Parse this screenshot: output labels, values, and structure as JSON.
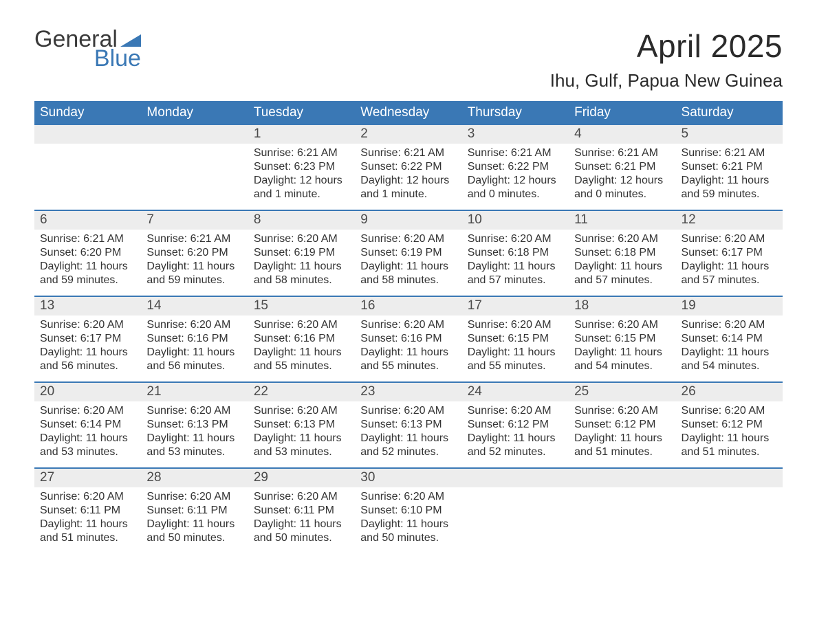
{
  "logo": {
    "word1": "General",
    "word2": "Blue",
    "tri_color": "#3a78b5",
    "text_color": "#3a3a3a"
  },
  "title": "April 2025",
  "location": "Ihu, Gulf, Papua New Guinea",
  "colors": {
    "header_bg": "#3a78b5",
    "header_text": "#ffffff",
    "daynum_bg": "#ededed",
    "daynum_text": "#4a4a4a",
    "body_text": "#333333",
    "separator": "#3a78b5",
    "page_bg": "#ffffff"
  },
  "fonts": {
    "title_size_pt": 34,
    "location_size_pt": 20,
    "dow_size_pt": 14,
    "daynum_size_pt": 14,
    "body_size_pt": 12
  },
  "days_of_week": [
    "Sunday",
    "Monday",
    "Tuesday",
    "Wednesday",
    "Thursday",
    "Friday",
    "Saturday"
  ],
  "weeks": [
    {
      "nums": [
        "",
        "",
        "1",
        "2",
        "3",
        "4",
        "5"
      ],
      "cells": [
        "",
        "",
        "Sunrise: 6:21 AM\nSunset: 6:23 PM\nDaylight: 12 hours and 1 minute.",
        "Sunrise: 6:21 AM\nSunset: 6:22 PM\nDaylight: 12 hours and 1 minute.",
        "Sunrise: 6:21 AM\nSunset: 6:22 PM\nDaylight: 12 hours and 0 minutes.",
        "Sunrise: 6:21 AM\nSunset: 6:21 PM\nDaylight: 12 hours and 0 minutes.",
        "Sunrise: 6:21 AM\nSunset: 6:21 PM\nDaylight: 11 hours and 59 minutes."
      ]
    },
    {
      "nums": [
        "6",
        "7",
        "8",
        "9",
        "10",
        "11",
        "12"
      ],
      "cells": [
        "Sunrise: 6:21 AM\nSunset: 6:20 PM\nDaylight: 11 hours and 59 minutes.",
        "Sunrise: 6:21 AM\nSunset: 6:20 PM\nDaylight: 11 hours and 59 minutes.",
        "Sunrise: 6:20 AM\nSunset: 6:19 PM\nDaylight: 11 hours and 58 minutes.",
        "Sunrise: 6:20 AM\nSunset: 6:19 PM\nDaylight: 11 hours and 58 minutes.",
        "Sunrise: 6:20 AM\nSunset: 6:18 PM\nDaylight: 11 hours and 57 minutes.",
        "Sunrise: 6:20 AM\nSunset: 6:18 PM\nDaylight: 11 hours and 57 minutes.",
        "Sunrise: 6:20 AM\nSunset: 6:17 PM\nDaylight: 11 hours and 57 minutes."
      ]
    },
    {
      "nums": [
        "13",
        "14",
        "15",
        "16",
        "17",
        "18",
        "19"
      ],
      "cells": [
        "Sunrise: 6:20 AM\nSunset: 6:17 PM\nDaylight: 11 hours and 56 minutes.",
        "Sunrise: 6:20 AM\nSunset: 6:16 PM\nDaylight: 11 hours and 56 minutes.",
        "Sunrise: 6:20 AM\nSunset: 6:16 PM\nDaylight: 11 hours and 55 minutes.",
        "Sunrise: 6:20 AM\nSunset: 6:16 PM\nDaylight: 11 hours and 55 minutes.",
        "Sunrise: 6:20 AM\nSunset: 6:15 PM\nDaylight: 11 hours and 55 minutes.",
        "Sunrise: 6:20 AM\nSunset: 6:15 PM\nDaylight: 11 hours and 54 minutes.",
        "Sunrise: 6:20 AM\nSunset: 6:14 PM\nDaylight: 11 hours and 54 minutes."
      ]
    },
    {
      "nums": [
        "20",
        "21",
        "22",
        "23",
        "24",
        "25",
        "26"
      ],
      "cells": [
        "Sunrise: 6:20 AM\nSunset: 6:14 PM\nDaylight: 11 hours and 53 minutes.",
        "Sunrise: 6:20 AM\nSunset: 6:13 PM\nDaylight: 11 hours and 53 minutes.",
        "Sunrise: 6:20 AM\nSunset: 6:13 PM\nDaylight: 11 hours and 53 minutes.",
        "Sunrise: 6:20 AM\nSunset: 6:13 PM\nDaylight: 11 hours and 52 minutes.",
        "Sunrise: 6:20 AM\nSunset: 6:12 PM\nDaylight: 11 hours and 52 minutes.",
        "Sunrise: 6:20 AM\nSunset: 6:12 PM\nDaylight: 11 hours and 51 minutes.",
        "Sunrise: 6:20 AM\nSunset: 6:12 PM\nDaylight: 11 hours and 51 minutes."
      ]
    },
    {
      "nums": [
        "27",
        "28",
        "29",
        "30",
        "",
        "",
        ""
      ],
      "cells": [
        "Sunrise: 6:20 AM\nSunset: 6:11 PM\nDaylight: 11 hours and 51 minutes.",
        "Sunrise: 6:20 AM\nSunset: 6:11 PM\nDaylight: 11 hours and 50 minutes.",
        "Sunrise: 6:20 AM\nSunset: 6:11 PM\nDaylight: 11 hours and 50 minutes.",
        "Sunrise: 6:20 AM\nSunset: 6:10 PM\nDaylight: 11 hours and 50 minutes.",
        "",
        "",
        ""
      ]
    }
  ]
}
